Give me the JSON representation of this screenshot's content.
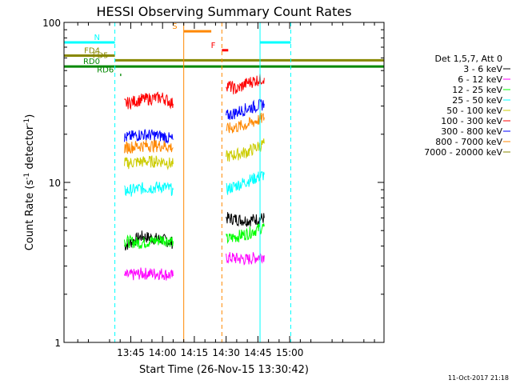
{
  "chart_data": {
    "type": "line",
    "title": "HESSI Observing Summary Count Rates",
    "xlabel": "Start Time (26-Nov-15 13:30:42)",
    "ylabel_main": "Count Rate (s",
    "ylabel_sup1": "-1",
    "ylabel_mid": " detector",
    "ylabel_sup2": "-1",
    "ylabel_end": ")",
    "yscale": "log",
    "ylim": [
      1,
      100
    ],
    "xlim_minutes": [
      13.5,
      164.5
    ],
    "x_ticks": [
      {
        "label": "13:45",
        "min": 45
      },
      {
        "label": "14:00",
        "min": 60
      },
      {
        "label": "14:15",
        "min": 75
      },
      {
        "label": "14:30",
        "min": 90
      },
      {
        "label": "14:45",
        "min": 105
      },
      {
        "label": "15:00",
        "min": 120
      }
    ],
    "y_ticks": [
      {
        "label": "1",
        "value": 1
      },
      {
        "label": "10",
        "value": 10
      },
      {
        "label": "100",
        "value": 100
      }
    ],
    "legend_title": "Det 1,5,7, Att 0",
    "series": [
      {
        "name": "3 - 6 keV",
        "color": "#000000",
        "segments": [
          [
            [
              42,
              4.0
            ],
            [
              50,
              4.6
            ],
            [
              60,
              4.4
            ],
            [
              65,
              4.2
            ]
          ],
          [
            [
              90,
              6.0
            ],
            [
              100,
              5.8
            ],
            [
              108,
              6.0
            ]
          ]
        ]
      },
      {
        "name": "6 - 12 keV",
        "color": "#ff00ff",
        "segments": [
          [
            [
              42,
              2.6
            ],
            [
              50,
              2.7
            ],
            [
              60,
              2.7
            ],
            [
              65,
              2.6
            ]
          ],
          [
            [
              90,
              3.4
            ],
            [
              100,
              3.3
            ],
            [
              108,
              3.5
            ]
          ]
        ]
      },
      {
        "name": "12 - 25 keV",
        "color": "#00ff00",
        "segments": [
          [
            [
              42,
              4.3
            ],
            [
              50,
              4.2
            ],
            [
              60,
              4.4
            ],
            [
              65,
              4.3
            ]
          ],
          [
            [
              90,
              4.4
            ],
            [
              100,
              4.8
            ],
            [
              108,
              5.3
            ]
          ]
        ]
      },
      {
        "name": "25 - 50 keV",
        "color": "#00ffff",
        "segments": [
          [
            [
              42,
              8.8
            ],
            [
              50,
              9.2
            ],
            [
              60,
              9.4
            ],
            [
              65,
              9.0
            ]
          ],
          [
            [
              90,
              9.0
            ],
            [
              100,
              10.2
            ],
            [
              108,
              11.2
            ]
          ]
        ]
      },
      {
        "name": "50 - 100 keV",
        "color": "#cccc00",
        "segments": [
          [
            [
              42,
              13.2
            ],
            [
              50,
              13.5
            ],
            [
              60,
              13.6
            ],
            [
              65,
              13.0
            ]
          ],
          [
            [
              90,
              14.5
            ],
            [
              100,
              15.5
            ],
            [
              108,
              17.5
            ]
          ]
        ]
      },
      {
        "name": "100 - 300 keV",
        "color": "#ff0000",
        "segments": [
          [
            [
              42,
              31
            ],
            [
              50,
              33
            ],
            [
              60,
              34
            ],
            [
              65,
              31
            ]
          ],
          [
            [
              90,
              41
            ],
            [
              95,
              38
            ],
            [
              100,
              42
            ],
            [
              108,
              45
            ]
          ]
        ]
      },
      {
        "name": "300 - 800 keV",
        "color": "#0000ff",
        "segments": [
          [
            [
              42,
              19
            ],
            [
              50,
              20
            ],
            [
              60,
              19.5
            ],
            [
              65,
              18.5
            ]
          ],
          [
            [
              90,
              26
            ],
            [
              100,
              29
            ],
            [
              108,
              31
            ]
          ]
        ]
      },
      {
        "name": "800 - 7000 keV",
        "color": "#ff8800",
        "segments": [
          [
            [
              42,
              16.5
            ],
            [
              50,
              17
            ],
            [
              60,
              17
            ],
            [
              65,
              16.5
            ]
          ],
          [
            [
              90,
              21.5
            ],
            [
              100,
              23
            ],
            [
              108,
              25.5
            ]
          ]
        ]
      },
      {
        "name": "7000 - 20000 keV",
        "color": "#888800",
        "segments": []
      }
    ],
    "flag_lines": [
      {
        "label": "N",
        "color": "#00ffff",
        "value": 75,
        "spans": [
          [
            13.5,
            37.5
          ],
          [
            106,
            120.5
          ]
        ]
      },
      {
        "label": "S",
        "color": "#ff8800",
        "value": 88,
        "spans": [
          [
            70,
            83
          ]
        ]
      },
      {
        "label": "F",
        "color": "#ff0000",
        "value": 67,
        "spans": [
          [
            88,
            91
          ]
        ]
      },
      {
        "label": "FD4",
        "color": "#888800",
        "value": 62,
        "spans": [
          [
            13.5,
            37.5
          ]
        ]
      },
      {
        "label": "FD5",
        "color": "#888800",
        "value": 58,
        "spans": [
          [
            37.5,
            164.5
          ]
        ]
      },
      {
        "label": "RD0",
        "color": "#008800",
        "value": 53,
        "spans": [
          [
            13.5,
            164.5
          ]
        ]
      },
      {
        "label": "RD6",
        "color": "#008800",
        "value": 47,
        "spans": [
          [
            40,
            40.5
          ]
        ]
      }
    ],
    "vertical_lines": [
      {
        "min": 37.5,
        "color": "#00ffff",
        "style": "dash"
      },
      {
        "min": 106,
        "color": "#00ffff",
        "style": "solid"
      },
      {
        "min": 120.5,
        "color": "#00ffff",
        "style": "dash"
      },
      {
        "min": 70,
        "color": "#ff8800",
        "style": "solid"
      },
      {
        "min": 88,
        "color": "#ff8800",
        "style": "dash"
      }
    ],
    "grid": false,
    "legend_position": "right"
  },
  "footer_timestamp": "11-Oct-2017 21:18"
}
